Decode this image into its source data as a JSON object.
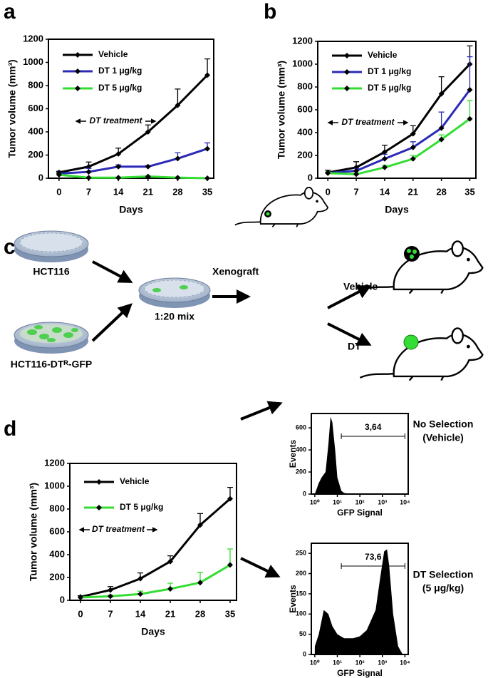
{
  "panel_labels": [
    "a",
    "b",
    "c",
    "d"
  ],
  "chart_data": [
    {
      "type": "line",
      "x": [
        0,
        7,
        14,
        21,
        28,
        35
      ],
      "xlim": [
        -2.5,
        36.5
      ],
      "xticks": [
        0,
        7,
        14,
        21,
        28,
        35
      ],
      "ylim": [
        0,
        1200
      ],
      "yticks": [
        0,
        200,
        400,
        600,
        800,
        1000,
        1200
      ],
      "xlabel": "Days",
      "ylabel": "Tumor volume (mm³)",
      "annotation": "DT treatment",
      "series": [
        {
          "name": "Vehicle",
          "color": "#000000",
          "values": [
            50,
            100,
            210,
            400,
            630,
            890
          ],
          "errors": [
            10,
            40,
            50,
            60,
            140,
            140
          ]
        },
        {
          "name": "DT 1 μg/kg",
          "color": "#2b2bb8",
          "values": [
            40,
            55,
            100,
            100,
            170,
            255
          ],
          "errors": [
            10,
            30,
            15,
            10,
            50,
            50
          ]
        },
        {
          "name": "DT 5 μg/kg",
          "color": "#33dd33",
          "values": [
            30,
            5,
            5,
            15,
            5,
            0
          ],
          "errors": [
            5,
            5,
            5,
            5,
            5,
            5
          ]
        }
      ]
    },
    {
      "type": "line",
      "x": [
        0,
        7,
        14,
        21,
        28,
        35
      ],
      "xlim": [
        -2.5,
        36.5
      ],
      "xticks": [
        0,
        7,
        14,
        21,
        28,
        35
      ],
      "ylim": [
        0,
        1200
      ],
      "yticks": [
        0,
        200,
        400,
        600,
        800,
        1000,
        1200
      ],
      "xlabel": "Days",
      "ylabel": "Tumor volume (mm³)",
      "annotation": "DT treatment",
      "series": [
        {
          "name": "Vehicle",
          "color": "#000000",
          "values": [
            50,
            95,
            230,
            390,
            740,
            1000
          ],
          "errors": [
            20,
            50,
            60,
            70,
            150,
            160
          ]
        },
        {
          "name": "DT 1 μg/kg",
          "color": "#2b2bb8",
          "values": [
            45,
            65,
            170,
            270,
            440,
            775
          ],
          "errors": [
            10,
            20,
            40,
            50,
            140,
            290
          ]
        },
        {
          "name": "DT 5 μg/kg",
          "color": "#33dd33",
          "values": [
            45,
            35,
            95,
            170,
            340,
            520
          ],
          "errors": [
            10,
            10,
            20,
            30,
            40,
            160
          ]
        }
      ]
    },
    {
      "type": "line",
      "x": [
        0,
        7,
        14,
        21,
        28,
        35
      ],
      "xlim": [
        -2.5,
        36.5
      ],
      "xticks": [
        0,
        7,
        14,
        21,
        28,
        35
      ],
      "ylim": [
        0,
        1200
      ],
      "yticks": [
        0,
        200,
        400,
        600,
        800,
        1000,
        1200
      ],
      "xlabel": "Days",
      "ylabel": "Tumor volume (mm³)",
      "annotation": "DT treatment",
      "series": [
        {
          "name": "Vehicle",
          "color": "#000000",
          "values": [
            30,
            90,
            190,
            340,
            660,
            890
          ],
          "errors": [
            10,
            30,
            50,
            50,
            100,
            100
          ]
        },
        {
          "name": "DT 5 μg/kg",
          "color": "#33dd33",
          "values": [
            25,
            35,
            55,
            100,
            155,
            310
          ],
          "errors": [
            5,
            10,
            25,
            50,
            90,
            140
          ]
        }
      ]
    },
    {
      "type": "area",
      "xscale": "log",
      "color": "#000000",
      "x": [
        1,
        1.5,
        2,
        3,
        4,
        5,
        6,
        8,
        10,
        15,
        20,
        30,
        50,
        100,
        1000,
        10000
      ],
      "values": [
        0,
        100,
        150,
        200,
        450,
        700,
        650,
        400,
        150,
        30,
        10,
        5,
        0,
        0,
        0,
        0
      ],
      "xlim": [
        0.7,
        14000
      ],
      "xticks": [
        {
          "value": 1,
          "label": "10⁰"
        },
        {
          "value": 10,
          "label": "10¹"
        },
        {
          "value": 100,
          "label": "10²"
        },
        {
          "value": 1000,
          "label": "10³"
        },
        {
          "value": 10000,
          "label": "10⁴"
        }
      ],
      "ylim": [
        0,
        730
      ],
      "yticks": [
        0,
        200,
        400,
        600
      ],
      "xlabel": "GFP Signal",
      "ylabel": "Events",
      "gate": {
        "label": "3,64",
        "range": [
          15,
          10000
        ]
      }
    },
    {
      "type": "area",
      "xscale": "log",
      "color": "#000000",
      "x": [
        1,
        1.5,
        2.5,
        4,
        6,
        10,
        20,
        50,
        100,
        200,
        500,
        800,
        1200,
        1600,
        2000,
        3000,
        5000,
        8000
      ],
      "values": [
        20,
        50,
        110,
        100,
        70,
        50,
        40,
        40,
        45,
        60,
        110,
        190,
        255,
        260,
        220,
        100,
        20,
        0
      ],
      "xlim": [
        0.7,
        14000
      ],
      "xticks": [
        {
          "value": 1,
          "label": "10⁰"
        },
        {
          "value": 10,
          "label": "10¹"
        },
        {
          "value": 100,
          "label": "10²"
        },
        {
          "value": 1000,
          "label": "10³"
        },
        {
          "value": 10000,
          "label": "10⁴"
        }
      ],
      "ylim": [
        0,
        275
      ],
      "yticks": [
        0,
        50,
        100,
        150,
        200,
        250
      ],
      "xlabel": "GFP Signal",
      "ylabel": "Events",
      "gate": {
        "label": "73,6",
        "range": [
          15,
          10000
        ]
      }
    }
  ],
  "diagram": {
    "dish_labels": [
      "HCT116",
      "HCT116-DTᴿ-GFP"
    ],
    "mix": "1:20 mix",
    "xenograft": "Xenograft",
    "branches": [
      "Vehicle",
      "DT"
    ]
  },
  "side_labels": [
    [
      "No Selection",
      "(Vehicle)"
    ],
    [
      "DT Selection",
      "(5 μg/kg)"
    ]
  ]
}
